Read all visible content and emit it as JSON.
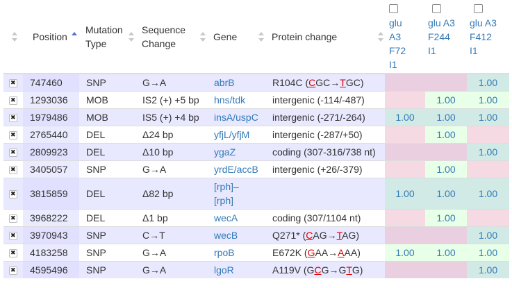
{
  "headers": {
    "position": "Position",
    "mutation_type": "Mutation Type",
    "sequence_change": "Sequence Change",
    "gene": "Gene",
    "protein_change": "Protein change"
  },
  "samples": [
    {
      "label": "glu A3 F72 I1",
      "checked": false
    },
    {
      "label": "glu A3 F244 I1",
      "checked": false
    },
    {
      "label": "glu A3 F412 I1",
      "checked": false
    }
  ],
  "colors": {
    "pink": "#f5d9e3",
    "green": "#e8ffe8",
    "teal": "#d1eae6",
    "link": "#337ab7",
    "mutation_red": "#dd0000",
    "row_highlight": "#e8e8ff"
  },
  "rows": [
    {
      "position": "747460",
      "type": "SNP",
      "seq": "G→A",
      "gene": "abrB",
      "protein": [
        {
          "t": "R104C ("
        },
        {
          "t": "C",
          "m": true
        },
        {
          "t": "GC→"
        },
        {
          "t": "T",
          "m": true
        },
        {
          "t": "GC)"
        }
      ],
      "freqs": [
        "",
        "",
        "1.00"
      ],
      "colors": [
        "pink",
        "pink",
        "teal"
      ]
    },
    {
      "position": "1293036",
      "type": "MOB",
      "seq": "IS2 (+) +5 bp",
      "gene": "hns/tdk",
      "protein": [
        {
          "t": "intergenic (-114/-487)"
        }
      ],
      "freqs": [
        "",
        "1.00",
        "1.00"
      ],
      "colors": [
        "pink",
        "green",
        "green"
      ]
    },
    {
      "position": "1979486",
      "type": "MOB",
      "seq": "IS5 (+) +4 bp",
      "gene": "insA/uspC",
      "protein": [
        {
          "t": "intergenic (-271/-264)"
        }
      ],
      "freqs": [
        "1.00",
        "1.00",
        "1.00"
      ],
      "colors": [
        "teal",
        "teal",
        "teal"
      ]
    },
    {
      "position": "2765440",
      "type": "DEL",
      "seq": "Δ24 bp",
      "gene": "yfjL/yfjM",
      "protein": [
        {
          "t": "intergenic (-287/+50)"
        }
      ],
      "freqs": [
        "",
        "1.00",
        ""
      ],
      "colors": [
        "pink",
        "green",
        "pink"
      ]
    },
    {
      "position": "2809923",
      "type": "DEL",
      "seq": "Δ10 bp",
      "gene": "ygaZ",
      "protein": [
        {
          "t": "coding (307-316/738 nt)"
        }
      ],
      "freqs": [
        "",
        "",
        "1.00"
      ],
      "colors": [
        "pink",
        "pink",
        "teal"
      ]
    },
    {
      "position": "3405057",
      "type": "SNP",
      "seq": "G→A",
      "gene": "yrdE/accB",
      "protein": [
        {
          "t": "intergenic (+26/-379)"
        }
      ],
      "freqs": [
        "",
        "1.00",
        ""
      ],
      "colors": [
        "pink",
        "green",
        "pink"
      ]
    },
    {
      "position": "3815859",
      "type": "DEL",
      "seq": "Δ82 bp",
      "gene": "[rph]–[rph]",
      "protein": [
        {
          "t": ""
        }
      ],
      "freqs": [
        "1.00",
        "1.00",
        "1.00"
      ],
      "colors": [
        "teal",
        "teal",
        "teal"
      ]
    },
    {
      "position": "3968222",
      "type": "DEL",
      "seq": "Δ1 bp",
      "gene": "wecA",
      "protein": [
        {
          "t": "coding (307/1104 nt)"
        }
      ],
      "freqs": [
        "",
        "1.00",
        ""
      ],
      "colors": [
        "pink",
        "green",
        "pink"
      ]
    },
    {
      "position": "3970943",
      "type": "SNP",
      "seq": "C→T",
      "gene": "wecB",
      "protein": [
        {
          "t": "Q271* ("
        },
        {
          "t": "C",
          "m": true
        },
        {
          "t": "AG→"
        },
        {
          "t": "T",
          "m": true
        },
        {
          "t": "AG)"
        }
      ],
      "freqs": [
        "",
        "",
        "1.00"
      ],
      "colors": [
        "pink",
        "pink",
        "teal"
      ]
    },
    {
      "position": "4183258",
      "type": "SNP",
      "seq": "G→A",
      "gene": "rpoB",
      "protein": [
        {
          "t": "E672K ("
        },
        {
          "t": "G",
          "m": true
        },
        {
          "t": "AA→"
        },
        {
          "t": "A",
          "m": true
        },
        {
          "t": "AA)"
        }
      ],
      "freqs": [
        "1.00",
        "1.00",
        "1.00"
      ],
      "colors": [
        "green",
        "green",
        "green"
      ]
    },
    {
      "position": "4595496",
      "type": "SNP",
      "seq": "G→A",
      "gene": "lgoR",
      "protein": [
        {
          "t": "A119V (G"
        },
        {
          "t": "C",
          "m": true
        },
        {
          "t": "G→G"
        },
        {
          "t": "T",
          "m": true
        },
        {
          "t": "G)"
        }
      ],
      "freqs": [
        "",
        "",
        "1.00"
      ],
      "colors": [
        "pink",
        "pink",
        "teal"
      ]
    }
  ]
}
